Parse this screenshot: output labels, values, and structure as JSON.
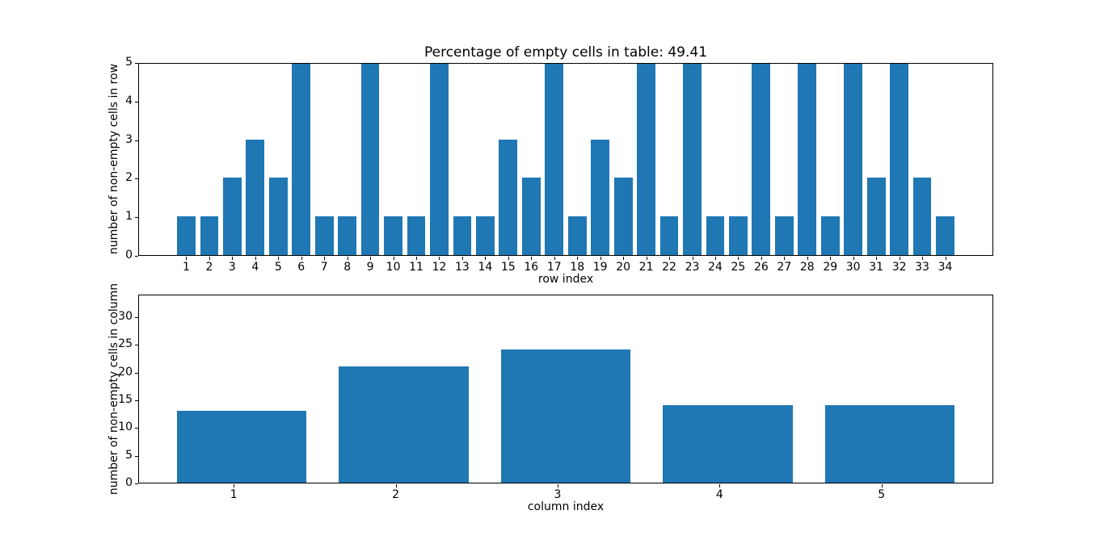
{
  "figure": {
    "background": "#ffffff",
    "bar_color": "#1f77b4",
    "axis_color": "#000000",
    "text_color": "#000000",
    "percentage_empty": 49.41
  },
  "chart_data": [
    {
      "type": "bar",
      "title": "Percentage of empty cells in table: 49.41",
      "xlabel": "row index",
      "ylabel": "number of non-empty cells in row",
      "categories": [
        1,
        2,
        3,
        4,
        5,
        6,
        7,
        8,
        9,
        10,
        11,
        12,
        13,
        14,
        15,
        16,
        17,
        18,
        19,
        20,
        21,
        22,
        23,
        24,
        25,
        26,
        27,
        28,
        29,
        30,
        31,
        32,
        33,
        34
      ],
      "values": [
        1,
        1,
        2,
        3,
        2,
        5,
        1,
        1,
        5,
        1,
        1,
        5,
        1,
        1,
        3,
        2,
        5,
        1,
        3,
        2,
        5,
        1,
        5,
        1,
        1,
        5,
        1,
        5,
        1,
        5,
        2,
        5,
        2,
        1
      ],
      "yticks": [
        0,
        1,
        2,
        3,
        4,
        5
      ],
      "xlim": [
        -1.09,
        36.09
      ],
      "ylim": [
        0,
        5
      ],
      "bar_width": 0.8,
      "bar_offset": 0,
      "grid": false,
      "legend": null
    },
    {
      "type": "bar",
      "title": "",
      "xlabel": "column index",
      "ylabel": "number of non-empty cells in column",
      "categories": [
        1,
        2,
        3,
        4,
        5
      ],
      "values": [
        13,
        21,
        24,
        14,
        14
      ],
      "yticks": [
        0,
        5,
        10,
        15,
        20,
        25,
        30
      ],
      "xlim": [
        0.41,
        5.69
      ],
      "ylim": [
        0,
        34.1
      ],
      "bar_width": 0.8,
      "bar_offset": 0.05,
      "grid": false,
      "legend": null
    }
  ]
}
